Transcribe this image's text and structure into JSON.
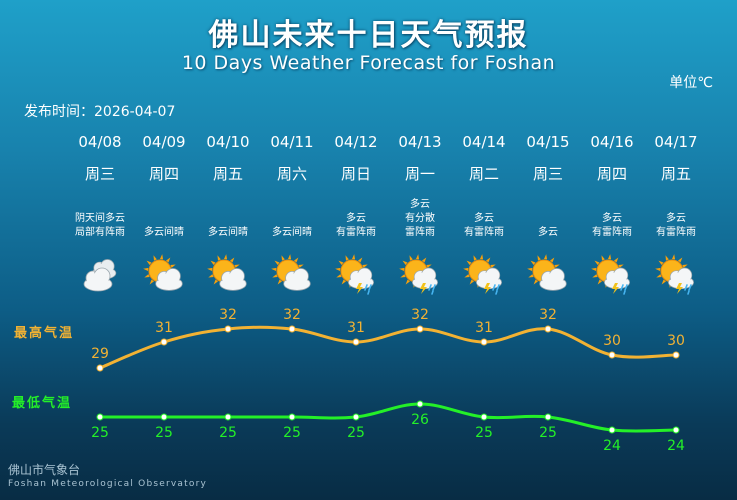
{
  "title": "佛山未来十日天气预报",
  "subtitle": "10 Days Weather Forecast for Foshan",
  "unit": "单位℃",
  "publish_time": "发布时间：2026-04-07",
  "labels": {
    "high": "最高气温",
    "low": "最低气温"
  },
  "footer": {
    "name_cn": "佛山市气象台",
    "name_en": "Foshan Meteorological Observatory"
  },
  "colors": {
    "high": "#f2b233",
    "low": "#24f028",
    "background_top": "#1fa0c9",
    "background_bottom": "#082c44"
  },
  "days": [
    {
      "date": "04/08",
      "weekday": "周三",
      "desc": "阴天间多云\n局部有阵雨",
      "icon": "cloudy-icon"
    },
    {
      "date": "04/09",
      "weekday": "周四",
      "desc": "多云间晴",
      "icon": "partly-sunny-icon"
    },
    {
      "date": "04/10",
      "weekday": "周五",
      "desc": "多云间晴",
      "icon": "partly-sunny-icon"
    },
    {
      "date": "04/11",
      "weekday": "周六",
      "desc": "多云间晴",
      "icon": "partly-sunny-icon"
    },
    {
      "date": "04/12",
      "weekday": "周日",
      "desc": "多云\n有雷阵雨",
      "icon": "thunder-shower-icon"
    },
    {
      "date": "04/13",
      "weekday": "周一",
      "desc": "多云\n有分散\n雷阵雨",
      "icon": "thunder-shower-icon"
    },
    {
      "date": "04/14",
      "weekday": "周二",
      "desc": "多云\n有雷阵雨",
      "icon": "thunder-shower-icon"
    },
    {
      "date": "04/15",
      "weekday": "周三",
      "desc": "多云",
      "icon": "partly-sunny-icon"
    },
    {
      "date": "04/16",
      "weekday": "周四",
      "desc": "多云\n有雷阵雨",
      "icon": "thunder-shower-icon"
    },
    {
      "date": "04/17",
      "weekday": "周五",
      "desc": "多云\n有雷阵雨",
      "icon": "thunder-shower-icon"
    }
  ],
  "chart_data": {
    "type": "line",
    "categories": [
      "04/08",
      "04/09",
      "04/10",
      "04/11",
      "04/12",
      "04/13",
      "04/14",
      "04/15",
      "04/16",
      "04/17"
    ],
    "series": [
      {
        "name": "最高气温",
        "values": [
          29,
          31,
          32,
          32,
          31,
          32,
          31,
          32,
          30,
          30
        ]
      },
      {
        "name": "最低气温",
        "values": [
          25,
          25,
          25,
          25,
          25,
          26,
          25,
          25,
          24,
          24
        ]
      }
    ],
    "ylabel": "单位℃",
    "smooth": true,
    "grid": false
  }
}
